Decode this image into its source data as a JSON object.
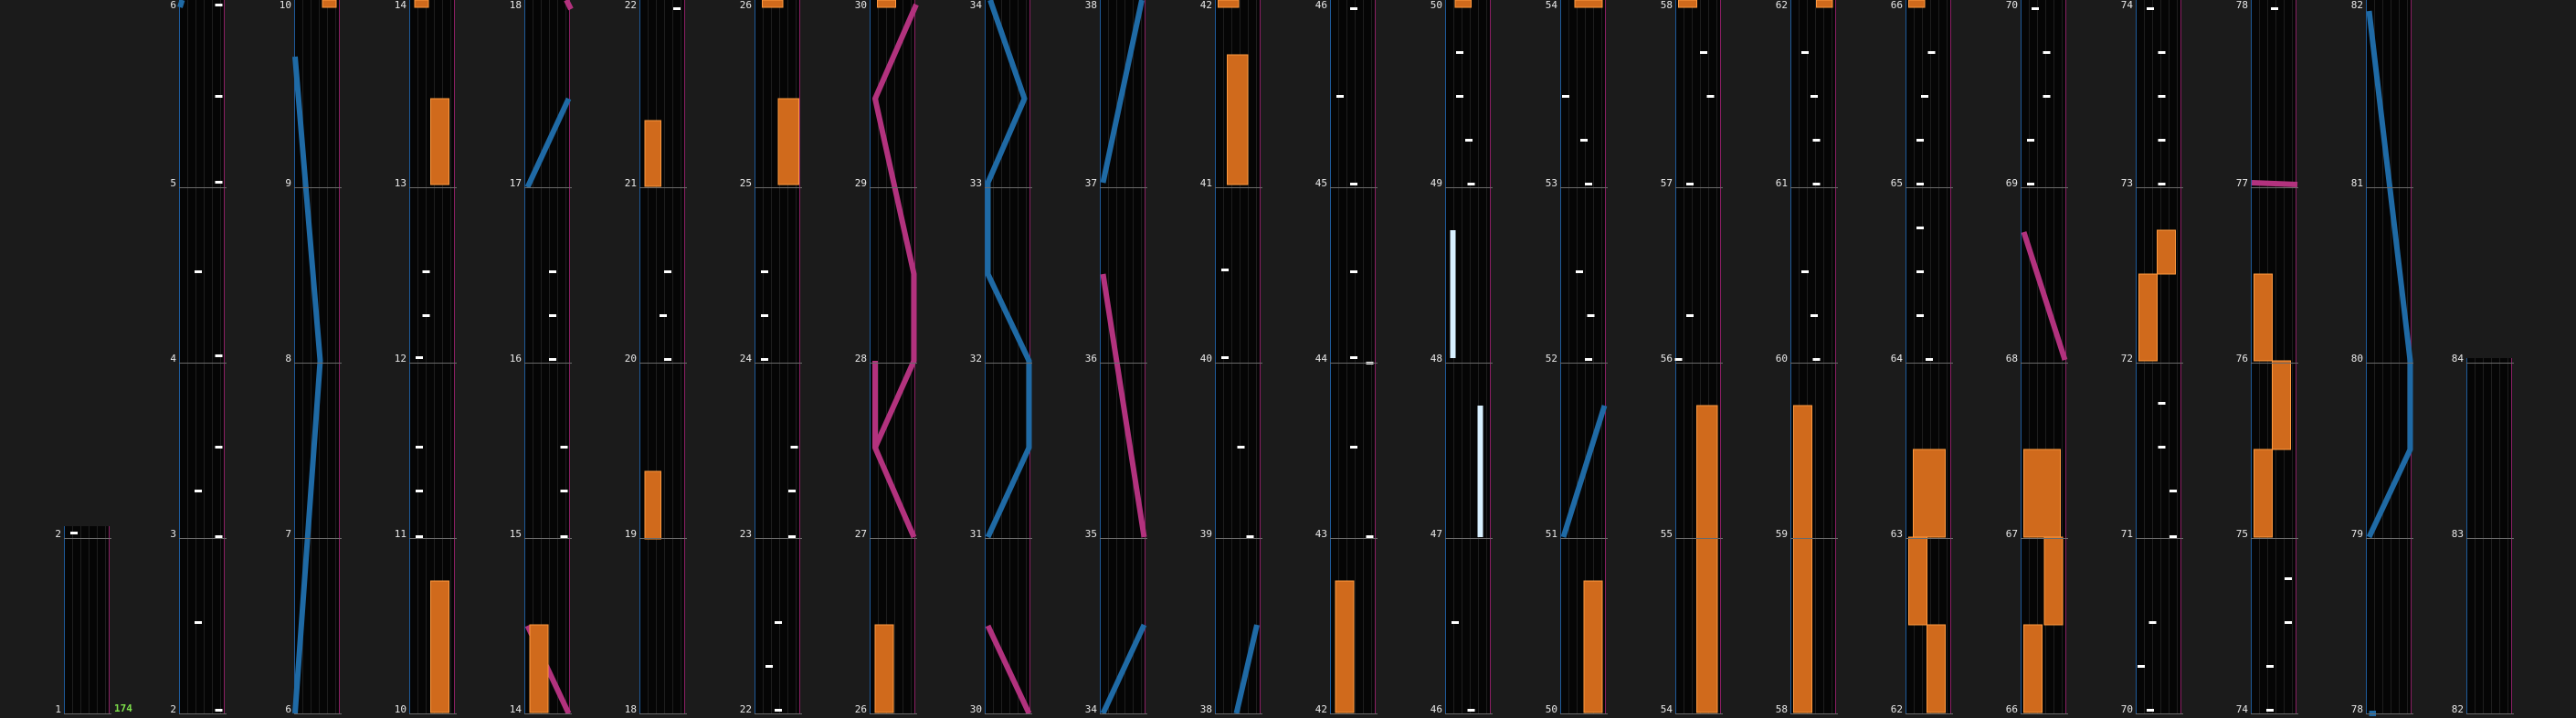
{
  "chart_editor": {
    "combo_count": "174",
    "measure_labels": [
      "1",
      "2",
      "3",
      "4",
      "5",
      "6",
      "7",
      "8",
      "9",
      "10",
      "11",
      "12",
      "13",
      "14",
      "15",
      "16",
      "17",
      "18",
      "19",
      "20",
      "21",
      "22",
      "23",
      "24",
      "25",
      "26",
      "27",
      "28",
      "29",
      "30",
      "31",
      "32",
      "33",
      "34",
      "35",
      "36",
      "37",
      "38",
      "39",
      "40",
      "41",
      "42",
      "43",
      "44",
      "45",
      "46",
      "47",
      "48",
      "49",
      "50",
      "51",
      "52",
      "53",
      "54",
      "55",
      "56",
      "57",
      "58",
      "59",
      "60",
      "61",
      "62",
      "63",
      "64",
      "65",
      "66",
      "67",
      "68",
      "69",
      "70",
      "71",
      "72",
      "73",
      "74",
      "75",
      "76",
      "77",
      "78",
      "79",
      "80",
      "81",
      "82",
      "83",
      "84"
    ]
  },
  "colors": {
    "background": "#1b1b1b",
    "lane_bg": "#050505",
    "left_border": "#1e5a9a",
    "right_border": "#8a1f63",
    "slide_blue": "#1f6aa5",
    "slide_pink": "#b2327e",
    "hold_orange": "#d06a1c",
    "tap_white": "#ffffff",
    "flick_cyan": "#d8f0ff",
    "combo_green": "#7ee04a"
  }
}
